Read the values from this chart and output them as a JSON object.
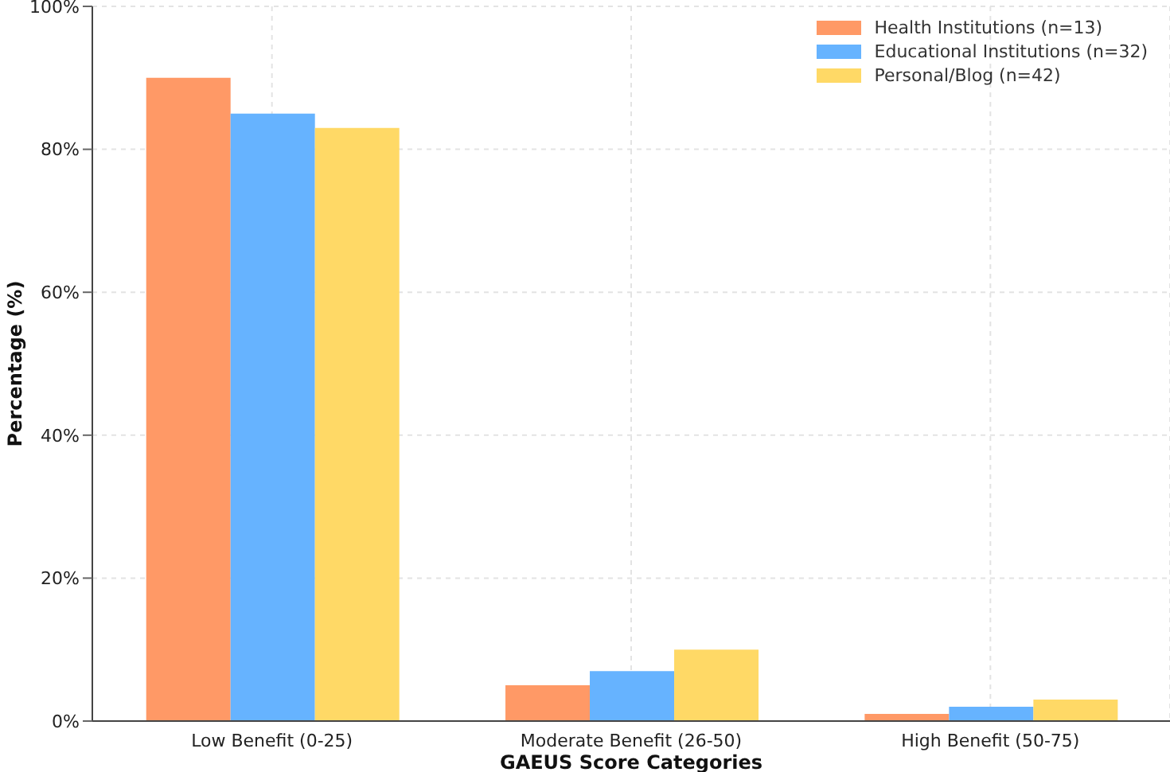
{
  "chart_data": {
    "type": "bar",
    "xlabel": "GAEUS Score Categories",
    "ylabel": "Percentage (%)",
    "categories": [
      "Low Benefit (0-25)",
      "Moderate Benefit (26-50)",
      "High Benefit (50-75)"
    ],
    "series": [
      {
        "name": "Health Institutions (n=13)",
        "color": "#ff9966",
        "values": [
          90,
          5,
          1
        ]
      },
      {
        "name": "Educational Institutions (n=32)",
        "color": "#66b3ff",
        "values": [
          85,
          7,
          2
        ]
      },
      {
        "name": "Personal/Blog (n=42)",
        "color": "#ffd966",
        "values": [
          83,
          10,
          3
        ]
      }
    ],
    "ylim": [
      0,
      100
    ],
    "yticks": [
      {
        "value": 0,
        "label": "0%"
      },
      {
        "value": 20,
        "label": "20%"
      },
      {
        "value": 40,
        "label": "40%"
      },
      {
        "value": 60,
        "label": "60%"
      },
      {
        "value": 80,
        "label": "80%"
      },
      {
        "value": 100,
        "label": "100%"
      }
    ],
    "grid": true,
    "legend": "top right"
  }
}
